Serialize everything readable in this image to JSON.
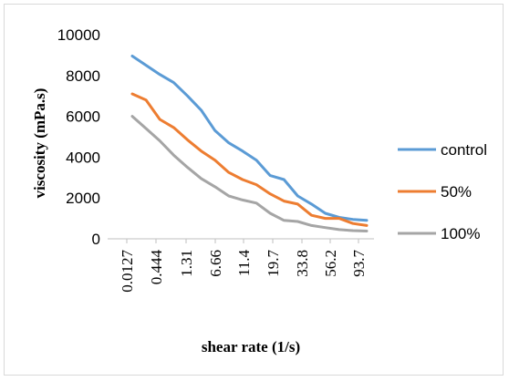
{
  "chart_data": {
    "type": "line",
    "title": "",
    "xlabel": "shear rate (1/s)",
    "ylabel": "viscosity (mPa.s)",
    "ylim": [
      0,
      10000
    ],
    "yticks": [
      "0",
      "2000",
      "4000",
      "6000",
      "8000",
      "10000"
    ],
    "grid": false,
    "legend_position": "right",
    "x_tick_labels": [
      "0.0127",
      "0.444",
      "1.31",
      "6.66",
      "11.4",
      "19.7",
      "33.8",
      "56.2",
      "93.7"
    ],
    "series": [
      {
        "name": "control",
        "color": "#5b9bd5",
        "values": [
          8950,
          8500,
          8050,
          7650,
          7000,
          6300,
          5300,
          4700,
          4300,
          3850,
          3100,
          2900,
          2100,
          1700,
          1250,
          1050,
          950,
          900
        ]
      },
      {
        "name": "50%",
        "color": "#ed7d31",
        "values": [
          7100,
          6800,
          5850,
          5450,
          4850,
          4300,
          3850,
          3250,
          2900,
          2650,
          2200,
          1850,
          1700,
          1150,
          1000,
          1000,
          750,
          650
        ]
      },
      {
        "name": "100%",
        "color": "#a5a5a5",
        "values": [
          6000,
          5400,
          4800,
          4100,
          3500,
          2950,
          2550,
          2100,
          1900,
          1750,
          1250,
          900,
          850,
          650,
          550,
          450,
          400,
          380
        ]
      }
    ]
  }
}
